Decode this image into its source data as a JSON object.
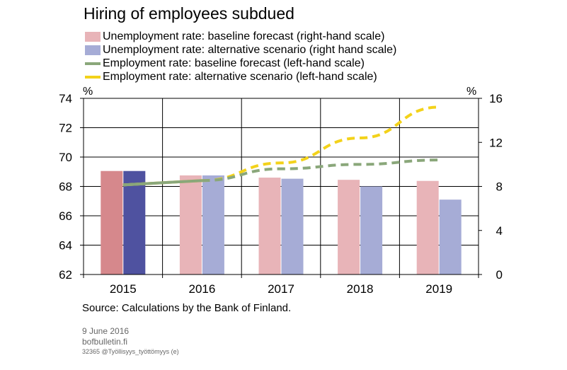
{
  "chart_data": {
    "type": "bar",
    "title": "Hiring of employees subdued",
    "categories": [
      "2015",
      "2016",
      "2017",
      "2018",
      "2019"
    ],
    "left_axis": {
      "unit": "%",
      "min": 62,
      "max": 74,
      "ticks": [
        "62",
        "64",
        "66",
        "68",
        "70",
        "72",
        "74"
      ]
    },
    "right_axis": {
      "unit": "%",
      "min": 0,
      "max": 16,
      "ticks": [
        "0",
        "4",
        "8",
        "12",
        "16"
      ]
    },
    "grid": true,
    "series": [
      {
        "name": "Unemployment rate: baseline forecast (right-hand scale)",
        "type": "bar",
        "axis": "right",
        "values": [
          9.4,
          9.0,
          8.8,
          8.6,
          8.5
        ],
        "color": "#e8b4b8",
        "highlight_color": "#d6888c"
      },
      {
        "name": "Unemployment rate: alternative scenario (right hand scale)",
        "type": "bar",
        "axis": "right",
        "values": [
          9.4,
          9.0,
          8.7,
          8.0,
          6.8
        ],
        "color": "#a6acd6",
        "highlight_color": "#4f52a0"
      },
      {
        "name": "Employment rate: baseline forecast (left-hand scale)",
        "type": "line",
        "axis": "left",
        "x": [
          2015,
          2016,
          2017,
          2018,
          2019
        ],
        "values": [
          68.1,
          68.4,
          69.2,
          69.5,
          69.8
        ],
        "color": "#8aa77a"
      },
      {
        "name": "Employment rate: alternative scenario (left-hand scale)",
        "type": "line",
        "axis": "left",
        "x": [
          2015,
          2016,
          2017,
          2018,
          2019
        ],
        "values": [
          68.1,
          68.4,
          69.6,
          71.3,
          73.4
        ],
        "color": "#f3d21a"
      }
    ],
    "solid_segment_end": 2016,
    "highlighted_category": "2015"
  },
  "source": "Source: Calculations by the Bank of Finland.",
  "footer": {
    "date": "9 June 2016",
    "site": "bofbulletin.fi",
    "code": "32365 @Työllisyys_työttömyys  (e)"
  }
}
